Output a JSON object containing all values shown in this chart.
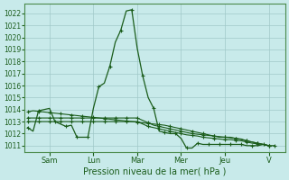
{
  "bg_color": "#c8eaea",
  "grid_color": "#a0c8c8",
  "line_color": "#1a5c1a",
  "xlabel": "Pression niveau de la mer( hPa )",
  "ylim_min": 1010.5,
  "ylim_max": 1022.8,
  "yticks": [
    1011,
    1012,
    1013,
    1014,
    1015,
    1016,
    1017,
    1018,
    1019,
    1020,
    1021,
    1022
  ],
  "day_labels": [
    "Sam",
    "Lun",
    "Mar",
    "Mer",
    "Jeu",
    "V"
  ],
  "day_positions": [
    2,
    6,
    10,
    14,
    18,
    22
  ],
  "xlim_min": -0.3,
  "xlim_max": 23.5,
  "main_x": [
    0,
    0.5,
    1,
    2,
    2.5,
    3,
    3.5,
    4,
    4.5,
    5,
    5.5,
    6,
    6.5,
    7,
    7.5,
    8,
    8.5,
    9,
    9.5,
    10,
    10.5,
    11,
    11.5,
    12,
    12.5,
    13,
    13.5,
    14,
    14.5,
    15,
    15.5,
    16,
    16.5,
    17,
    17.5,
    18,
    18.5,
    19,
    19.5,
    20,
    20.5,
    21,
    21.5,
    22,
    22.5
  ],
  "main_y": [
    1012.5,
    1012.2,
    1013.9,
    1014.1,
    1013.0,
    1012.8,
    1012.6,
    1012.7,
    1011.7,
    1011.7,
    1011.7,
    1014.1,
    1015.9,
    1016.2,
    1017.6,
    1019.6,
    1020.6,
    1022.2,
    1022.3,
    1019.1,
    1016.8,
    1015.0,
    1014.1,
    1012.2,
    1012.1,
    1012.0,
    1012.0,
    1011.6,
    1010.8,
    1010.8,
    1011.2,
    1011.1,
    1011.1,
    1011.1,
    1011.1,
    1011.1,
    1011.1,
    1011.1,
    1011.1,
    1011.0,
    1011.0,
    1011.0,
    1011.1,
    1011.0,
    1011.0
  ],
  "flat1_x": [
    0,
    0.5,
    1,
    1.5,
    2,
    2.5,
    3,
    3.5,
    4,
    4.5,
    5,
    5.5,
    6,
    6.5,
    7,
    7.5,
    8,
    8.5,
    9,
    9.5,
    10,
    10.5,
    11,
    11.5,
    12,
    12.5,
    13,
    13.5,
    14,
    14.5,
    15,
    15.5,
    16,
    16.5,
    17,
    17.5,
    18,
    18.5,
    19,
    19.5,
    20,
    20.5,
    21,
    21.5,
    22
  ],
  "flat1_y": [
    1013.8,
    1013.9,
    1013.85,
    1013.8,
    1013.75,
    1013.7,
    1013.65,
    1013.6,
    1013.55,
    1013.5,
    1013.45,
    1013.4,
    1013.35,
    1013.3,
    1013.25,
    1013.2,
    1013.15,
    1013.1,
    1013.05,
    1013.0,
    1012.95,
    1012.9,
    1012.85,
    1012.8,
    1012.75,
    1012.7,
    1012.6,
    1012.5,
    1012.4,
    1012.3,
    1012.2,
    1012.1,
    1012.0,
    1011.9,
    1011.8,
    1011.7,
    1011.7,
    1011.7,
    1011.6,
    1011.5,
    1011.4,
    1011.3,
    1011.2,
    1011.1,
    1011.0
  ],
  "flat2_x": [
    0,
    0.5,
    1,
    1.5,
    2,
    2.5,
    3,
    3.5,
    4,
    4.5,
    5,
    5.5,
    6,
    6.5,
    7,
    7.5,
    8,
    8.5,
    9,
    9.5,
    10,
    10.5,
    11,
    11.5,
    12,
    12.5,
    13,
    13.5,
    14,
    14.5,
    15,
    15.5,
    16,
    16.5,
    17,
    17.5,
    18,
    18.5,
    19,
    19.5,
    20,
    20.5,
    21,
    21.5,
    22
  ],
  "flat2_y": [
    1013.0,
    1013.0,
    1013.0,
    1013.0,
    1013.0,
    1013.0,
    1013.0,
    1013.0,
    1013.0,
    1013.0,
    1013.0,
    1013.0,
    1013.0,
    1013.0,
    1013.0,
    1013.0,
    1013.0,
    1013.0,
    1013.0,
    1013.0,
    1013.0,
    1012.8,
    1012.6,
    1012.5,
    1012.4,
    1012.3,
    1012.2,
    1012.1,
    1012.0,
    1011.9,
    1011.85,
    1011.8,
    1011.7,
    1011.65,
    1011.6,
    1011.55,
    1011.5,
    1011.5,
    1011.45,
    1011.4,
    1011.3,
    1011.2,
    1011.15,
    1011.1,
    1011.0
  ],
  "flat3_x": [
    0,
    0.5,
    1,
    1.5,
    2,
    2.5,
    3,
    3.5,
    4,
    4.5,
    5,
    5.5,
    6,
    6.5,
    7,
    7.5,
    8,
    8.5,
    9,
    9.5,
    10,
    10.5,
    11,
    11.5,
    12,
    12.5,
    13,
    13.5,
    14,
    14.5,
    15,
    15.5,
    16,
    16.5,
    17,
    17.5,
    18,
    18.5,
    19,
    19.5,
    20,
    20.5,
    21,
    21.5,
    22
  ],
  "flat3_y": [
    1013.3,
    1013.3,
    1013.3,
    1013.3,
    1013.3,
    1013.3,
    1013.3,
    1013.3,
    1013.3,
    1013.3,
    1013.3,
    1013.3,
    1013.3,
    1013.3,
    1013.3,
    1013.3,
    1013.3,
    1013.3,
    1013.3,
    1013.3,
    1013.3,
    1013.1,
    1012.9,
    1012.7,
    1012.6,
    1012.5,
    1012.4,
    1012.3,
    1012.2,
    1012.1,
    1012.0,
    1011.95,
    1011.9,
    1011.85,
    1011.8,
    1011.75,
    1011.7,
    1011.65,
    1011.6,
    1011.55,
    1011.4,
    1011.3,
    1011.2,
    1011.1,
    1011.0
  ]
}
